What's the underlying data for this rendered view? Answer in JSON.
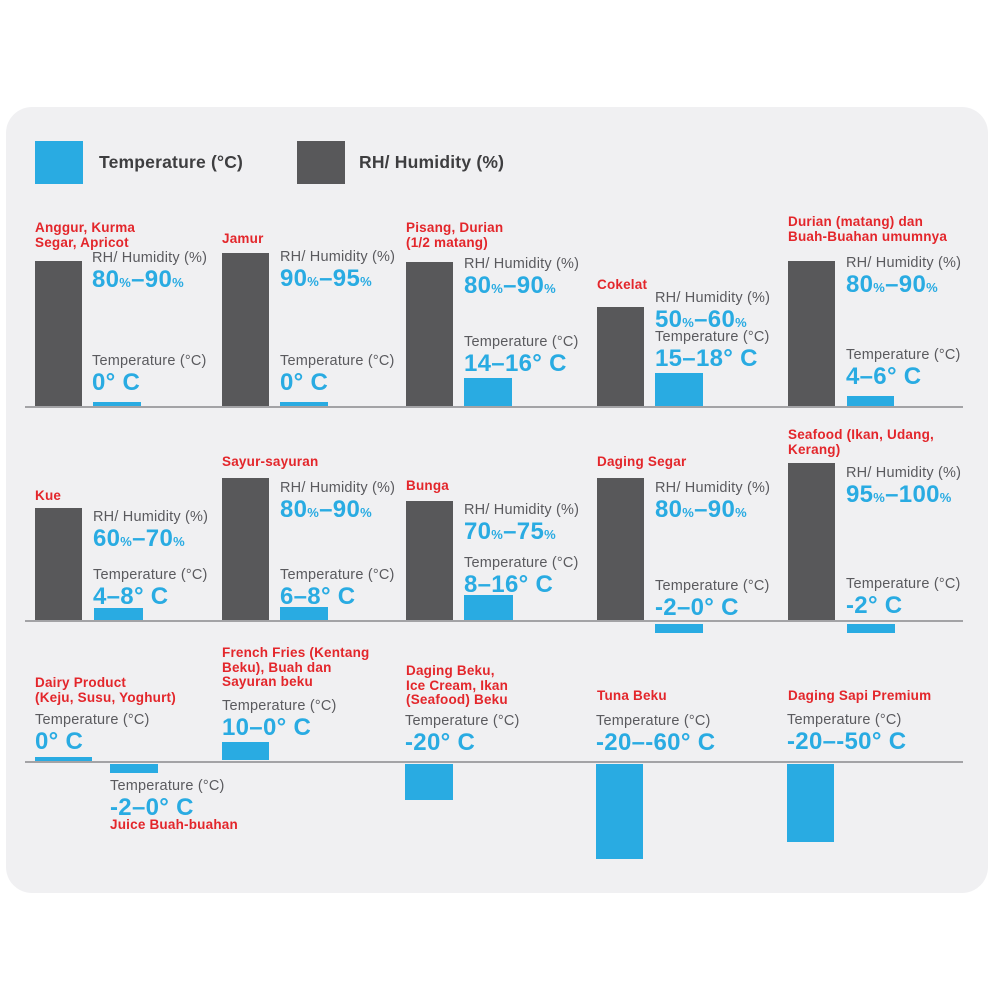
{
  "legend": {
    "temperature_label": "Temperature (°C)",
    "humidity_label": "RH/ Humidity (%)"
  },
  "labels": {
    "humidity": "RH/ Humidity (%)",
    "temperature": "Temperature (°C)"
  },
  "colors": {
    "blue": "#29abe2",
    "gray": "#58585a",
    "red": "#e3262b",
    "card_bg": "#f0f0f2",
    "baseline": "#a3a3a6",
    "label_text": "#5a5a5e",
    "legend_text": "#3e3e40"
  },
  "chart_data": {
    "type": "bar",
    "title": "",
    "legend": [
      "Temperature (°C)",
      "RH/ Humidity (%)"
    ],
    "legend_position": "top-left",
    "grid": false,
    "rows": [
      [
        {
          "name": "Anggur, Kurma\nSegar, Apricot",
          "humidity_pct": [
            80,
            90
          ],
          "humidity_text": "80%–90%",
          "temperature_c": [
            0,
            0
          ],
          "temperature_text": "0° C"
        },
        {
          "name": "Jamur",
          "humidity_pct": [
            90,
            95
          ],
          "humidity_text": "90%–95%",
          "temperature_c": [
            0,
            0
          ],
          "temperature_text": "0° C"
        },
        {
          "name": "Pisang, Durian\n(1/2 matang)",
          "humidity_pct": [
            80,
            90
          ],
          "humidity_text": "80%–90%",
          "temperature_c": [
            14,
            16
          ],
          "temperature_text": "14–16° C"
        },
        {
          "name": "Cokelat",
          "humidity_pct": [
            50,
            60
          ],
          "humidity_text": "50%–60%",
          "temperature_c": [
            15,
            18
          ],
          "temperature_text": "15–18° C"
        },
        {
          "name": "Durian (matang) dan\nBuah-Buahan umumnya",
          "humidity_pct": [
            80,
            90
          ],
          "humidity_text": "80%–90%",
          "temperature_c": [
            4,
            6
          ],
          "temperature_text": "4–6° C"
        }
      ],
      [
        {
          "name": "Kue",
          "humidity_pct": [
            60,
            70
          ],
          "humidity_text": "60%–70%",
          "temperature_c": [
            4,
            8
          ],
          "temperature_text": "4–8° C"
        },
        {
          "name": "Sayur-sayuran",
          "humidity_pct": [
            80,
            90
          ],
          "humidity_text": "80%–90%",
          "temperature_c": [
            6,
            8
          ],
          "temperature_text": "6–8° C"
        },
        {
          "name": "Bunga",
          "humidity_pct": [
            70,
            75
          ],
          "humidity_text": "70%–75%",
          "temperature_c": [
            8,
            16
          ],
          "temperature_text": "8–16° C"
        },
        {
          "name": "Daging Segar",
          "humidity_pct": [
            80,
            90
          ],
          "humidity_text": "80%–90%",
          "temperature_c": [
            -2,
            0
          ],
          "temperature_text": "-2–0° C"
        },
        {
          "name": "Seafood (Ikan, Udang,\nKerang)",
          "humidity_pct": [
            95,
            100
          ],
          "humidity_text": "95%–100%",
          "temperature_c": [
            -2,
            -2
          ],
          "temperature_text": "-2° C"
        }
      ],
      [
        {
          "name": "Dairy Product\n(Keju, Susu, Yoghurt)",
          "humidity_pct": null,
          "humidity_text": null,
          "temperature_c": [
            0,
            0
          ],
          "temperature_text": "0° C"
        },
        {
          "name": "Juice Buah-buahan",
          "humidity_pct": null,
          "humidity_text": null,
          "temperature_c": [
            -2,
            0
          ],
          "temperature_text": "-2–0° C"
        },
        {
          "name": "French Fries (Kentang\nBeku), Buah dan\nSayuran beku",
          "humidity_pct": null,
          "humidity_text": null,
          "temperature_c": [
            10,
            0
          ],
          "temperature_text": "10–0° C"
        },
        {
          "name": "Daging Beku,\nIce Cream, Ikan\n(Seafood) Beku",
          "humidity_pct": null,
          "humidity_text": null,
          "temperature_c": [
            -20,
            -20
          ],
          "temperature_text": "-20° C"
        },
        {
          "name": "Tuna Beku",
          "humidity_pct": null,
          "humidity_text": null,
          "temperature_c": [
            -20,
            -60
          ],
          "temperature_text": "-20–-60° C"
        },
        {
          "name": "Daging Sapi Premium",
          "humidity_pct": null,
          "humidity_text": null,
          "temperature_c": [
            -20,
            -50
          ],
          "temperature_text": "-20–-50° C"
        }
      ]
    ]
  }
}
